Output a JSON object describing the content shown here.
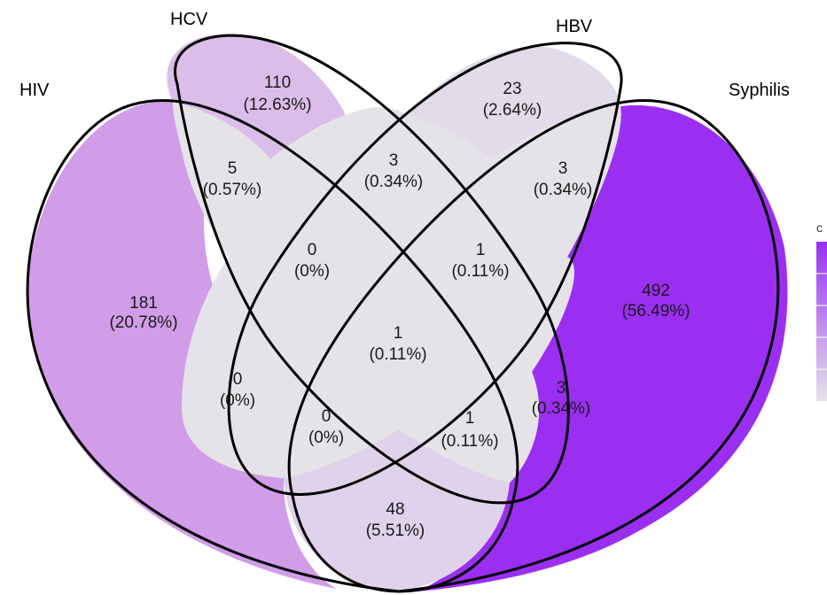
{
  "sets": [
    {
      "id": "HIV",
      "label": "HIV"
    },
    {
      "id": "HCV",
      "label": "HCV"
    },
    {
      "id": "HBV",
      "label": "HBV"
    },
    {
      "id": "Syphilis",
      "label": "Syphilis"
    }
  ],
  "regions": [
    {
      "sets": [
        "HIV"
      ],
      "count": "181",
      "percent": "(20.78%)",
      "color": "#d19ce8"
    },
    {
      "sets": [
        "HCV"
      ],
      "count": "110",
      "percent": "(12.63%)",
      "color": "#dbbde9"
    },
    {
      "sets": [
        "HBV"
      ],
      "count": "23",
      "percent": "(2.64%)",
      "color": "#e2dbe9"
    },
    {
      "sets": [
        "Syphilis"
      ],
      "count": "492",
      "percent": "(56.49%)",
      "color": "#9a2ff2"
    },
    {
      "sets": [
        "HIV",
        "HCV"
      ],
      "count": "5",
      "percent": "(0.57%)",
      "color": "#e5e3e8"
    },
    {
      "sets": [
        "HCV",
        "HBV"
      ],
      "count": "3",
      "percent": "(0.34%)",
      "color": "#e5e3e8"
    },
    {
      "sets": [
        "HBV",
        "Syphilis"
      ],
      "count": "3",
      "percent": "(0.34%)",
      "color": "#e5e3e8"
    },
    {
      "sets": [
        "HIV",
        "HCV",
        "HBV"
      ],
      "count": "0",
      "percent": "(0%)",
      "color": "#e5e3e8"
    },
    {
      "sets": [
        "HCV",
        "HBV",
        "Syphilis"
      ],
      "count": "1",
      "percent": "(0.11%)",
      "color": "#e5e3e8"
    },
    {
      "sets": [
        "HIV",
        "HCV",
        "HBV",
        "Syphilis"
      ],
      "count": "1",
      "percent": "(0.11%)",
      "color": "#e5e3e8"
    },
    {
      "sets": [
        "HIV",
        "HBV"
      ],
      "count": "0",
      "percent": "(0%)",
      "color": "#e5e3e8"
    },
    {
      "sets": [
        "HCV",
        "Syphilis"
      ],
      "count": "3",
      "percent": "(0.34%)",
      "color": "#e5e3e8"
    },
    {
      "sets": [
        "HIV",
        "HBV",
        "Syphilis"
      ],
      "count": "0",
      "percent": "(0%)",
      "color": "#e5e3e8"
    },
    {
      "sets": [
        "HIV",
        "HCV",
        "Syphilis"
      ],
      "count": "1",
      "percent": "(0.11%)",
      "color": "#e5e3e8"
    },
    {
      "sets": [
        "HIV",
        "Syphilis"
      ],
      "count": "48",
      "percent": "(5.51%)",
      "color": "#dfd2ea"
    }
  ],
  "legend": {
    "title": "c",
    "gradient": [
      "#9a2ff2",
      "#e5e3e8"
    ]
  },
  "colors": {
    "outline": "#000000",
    "background": "#ffffff"
  }
}
